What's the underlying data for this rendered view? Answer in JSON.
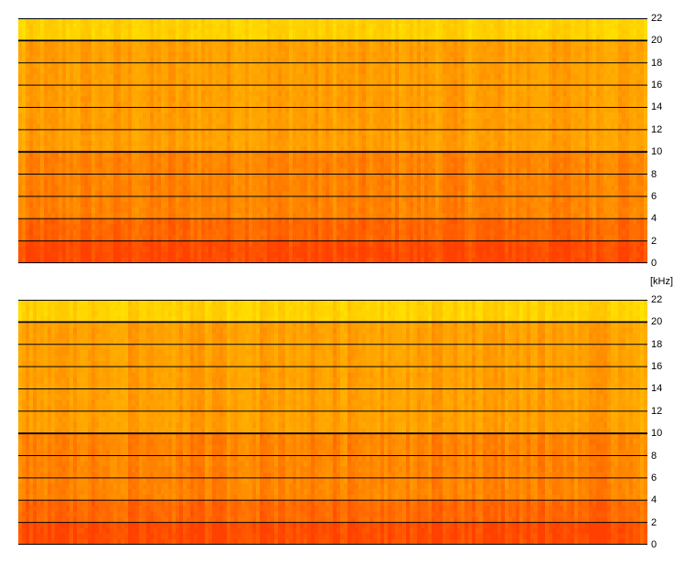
{
  "chart_data": [
    {
      "type": "heatmap",
      "name_hint": "channel-1",
      "y_unit": "[kHz]",
      "ylim": [
        0,
        22
      ],
      "y_ticks": [
        "0",
        "2",
        "4",
        "6",
        "8",
        "10",
        "12",
        "14",
        "16",
        "18",
        "20",
        "22"
      ],
      "grid": true,
      "colors": {
        "low": "#ffe600",
        "mid": "#ffa000",
        "high": "#ff4000"
      },
      "intensity_bands_khz": [
        {
          "from": 0,
          "to": 2,
          "level": 0.95
        },
        {
          "from": 2,
          "to": 4,
          "level": 0.8
        },
        {
          "from": 4,
          "to": 10,
          "level": 0.65
        },
        {
          "from": 10,
          "to": 20,
          "level": 0.5
        },
        {
          "from": 20,
          "to": 22,
          "level": 0.15
        }
      ]
    },
    {
      "type": "heatmap",
      "name_hint": "channel-2",
      "y_unit": "[kHz]",
      "ylim": [
        0,
        22
      ],
      "y_ticks": [
        "0",
        "2",
        "4",
        "6",
        "8",
        "10",
        "12",
        "14",
        "16",
        "18",
        "20",
        "22"
      ],
      "grid": true,
      "colors": {
        "low": "#ffe600",
        "mid": "#ffa000",
        "high": "#ff4000"
      },
      "intensity_bands_khz": [
        {
          "from": 0,
          "to": 2,
          "level": 0.95
        },
        {
          "from": 2,
          "to": 4,
          "level": 0.8
        },
        {
          "from": 4,
          "to": 10,
          "level": 0.65
        },
        {
          "from": 10,
          "to": 20,
          "level": 0.5
        },
        {
          "from": 20,
          "to": 22,
          "level": 0.15
        }
      ]
    }
  ],
  "axis": {
    "unit_label": "[kHz]"
  }
}
